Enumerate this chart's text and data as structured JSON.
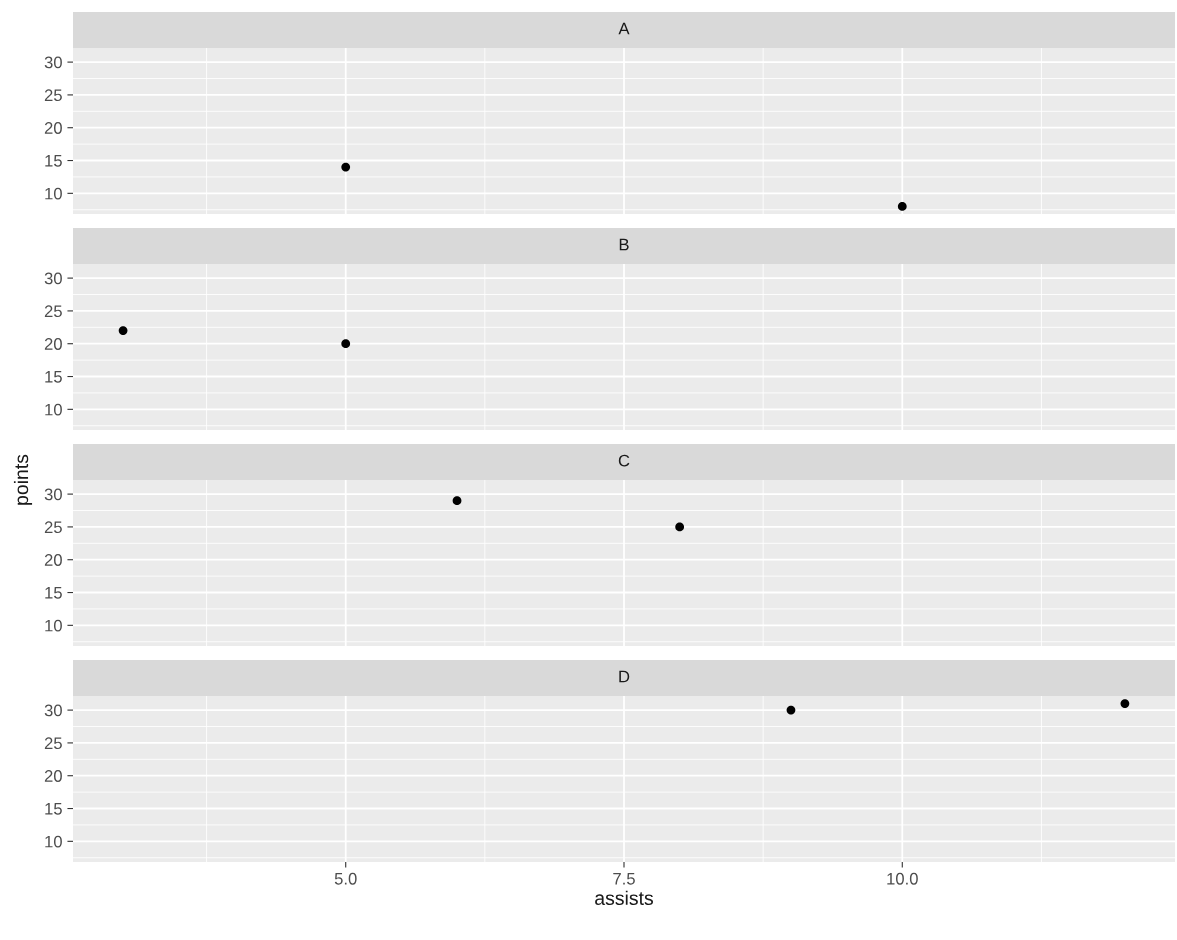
{
  "chart_data": [
    {
      "type": "scatter",
      "title": "A",
      "x": [
        5,
        10
      ],
      "values": [
        14,
        8
      ],
      "color": "#000000",
      "marker": "circle",
      "xlim": [
        2.55,
        12.45
      ],
      "ylim": [
        6.85,
        32.15
      ],
      "xticks": [
        5.0,
        7.5,
        10.0
      ],
      "yticks": [
        10,
        15,
        20,
        25,
        30
      ],
      "grid": true,
      "tick_labels": "y"
    },
    {
      "type": "scatter",
      "title": "B",
      "x": [
        3,
        5
      ],
      "values": [
        22,
        20
      ],
      "color": "#000000",
      "marker": "circle",
      "xlim": [
        2.55,
        12.45
      ],
      "ylim": [
        6.85,
        32.15
      ],
      "xticks": [
        5.0,
        7.5,
        10.0
      ],
      "yticks": [
        10,
        15,
        20,
        25,
        30
      ],
      "grid": true,
      "tick_labels": "y"
    },
    {
      "type": "scatter",
      "title": "C",
      "ylabel": "points",
      "x": [
        6,
        8
      ],
      "values": [
        29,
        25
      ],
      "color": "#000000",
      "marker": "circle",
      "xlim": [
        2.55,
        12.45
      ],
      "ylim": [
        6.85,
        32.15
      ],
      "xticks": [
        5.0,
        7.5,
        10.0
      ],
      "yticks": [
        10,
        15,
        20,
        25,
        30
      ],
      "grid": true,
      "tick_labels": "y"
    },
    {
      "type": "scatter",
      "title": "D",
      "xlabel": "assists",
      "x": [
        9,
        12
      ],
      "values": [
        30,
        31
      ],
      "color": "#000000",
      "marker": "circle",
      "xlim": [
        2.55,
        12.45
      ],
      "ylim": [
        6.85,
        32.15
      ],
      "xticks": [
        {
          "value": 5.0,
          "label": "5.0"
        },
        {
          "value": 7.5,
          "label": "7.5"
        },
        {
          "value": 10.0,
          "label": "10.0"
        }
      ],
      "yticks": [
        10,
        15,
        20,
        25,
        30
      ],
      "grid": true
    }
  ]
}
